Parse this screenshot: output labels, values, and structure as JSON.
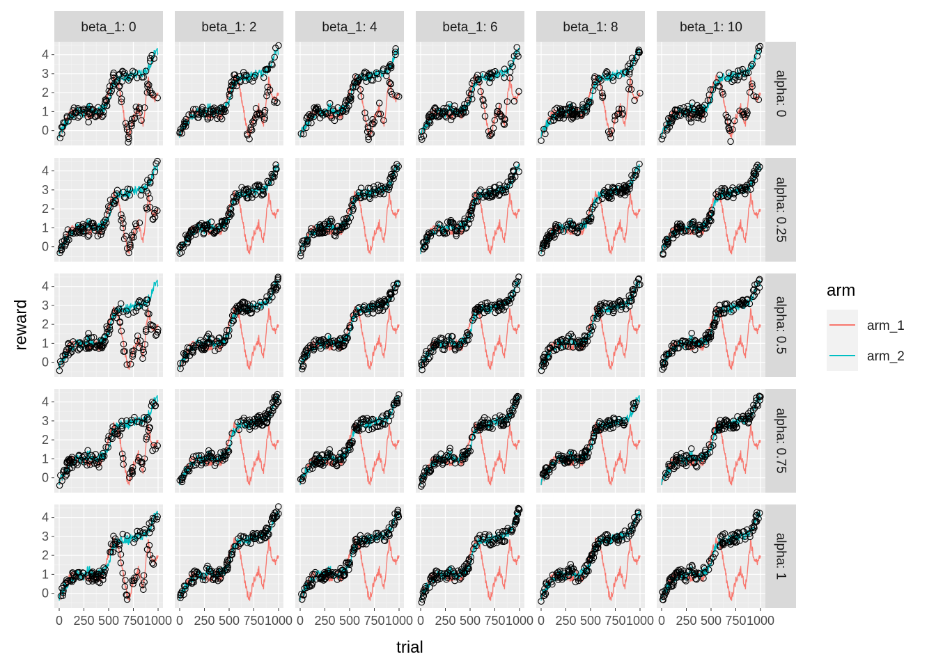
{
  "chart_data": {
    "type": "line",
    "overlay": "scatter",
    "xlabel": "trial",
    "ylabel": "reward",
    "xlim": [
      0,
      1000
    ],
    "ylim": [
      -0.6,
      4.5
    ],
    "x_ticks": [
      0,
      250,
      500,
      750,
      1000
    ],
    "y_ticks": [
      0,
      1,
      2,
      3,
      4
    ],
    "grid": true,
    "facet_cols": {
      "prefix": "beta_1: ",
      "levels": [
        "0",
        "2",
        "4",
        "6",
        "8",
        "10"
      ]
    },
    "facet_rows": {
      "prefix": "alpha: ",
      "levels": [
        "0",
        "0.25",
        "0.5",
        "0.75",
        "1"
      ]
    },
    "legend": {
      "title": "arm",
      "position": "right",
      "entries": [
        {
          "name": "arm_1",
          "color": "#F8766D"
        },
        {
          "name": "arm_2",
          "color": "#00BFC4"
        }
      ]
    },
    "series": [
      {
        "name": "arm_1",
        "x": [
          0,
          50,
          100,
          150,
          200,
          250,
          300,
          350,
          400,
          450,
          500,
          550,
          600,
          650,
          700,
          750,
          800,
          850,
          900,
          950,
          1000
        ],
        "values": [
          -0.3,
          0.2,
          0.8,
          1.0,
          0.9,
          1.0,
          0.7,
          1.1,
          0.8,
          1.0,
          2.0,
          2.8,
          2.5,
          0.9,
          -0.4,
          0.7,
          1.2,
          0.4,
          2.7,
          1.6,
          1.8
        ]
      },
      {
        "name": "arm_2",
        "x": [
          0,
          50,
          100,
          150,
          200,
          250,
          300,
          350,
          400,
          450,
          500,
          550,
          600,
          650,
          700,
          750,
          800,
          850,
          900,
          950,
          1000
        ],
        "values": [
          -0.3,
          0.3,
          0.6,
          0.9,
          1.0,
          0.9,
          1.3,
          0.8,
          1.0,
          1.2,
          1.6,
          2.5,
          2.8,
          2.9,
          2.8,
          2.9,
          3.0,
          3.0,
          3.3,
          3.9,
          4.3
        ]
      }
    ],
    "point_color": "#000000"
  }
}
